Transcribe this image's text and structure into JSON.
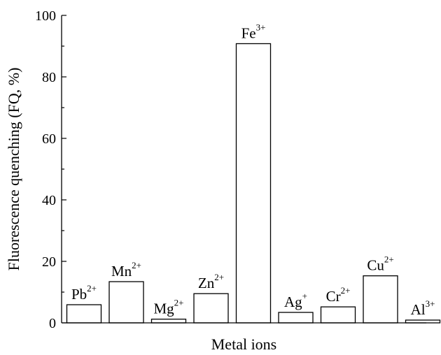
{
  "chart_data": {
    "type": "bar",
    "title": "",
    "xlabel": "Metal ions",
    "ylabel": "Fluorescence quenching (FQ, %)",
    "ylim": [
      0,
      100
    ],
    "yticks": [
      0,
      20,
      40,
      60,
      80,
      100
    ],
    "grid": false,
    "categories": [
      {
        "base": "Pb",
        "charge": "2+"
      },
      {
        "base": "Mn",
        "charge": "2+"
      },
      {
        "base": "Mg",
        "charge": "2+"
      },
      {
        "base": "Zn",
        "charge": "2+"
      },
      {
        "base": "Fe",
        "charge": "3+"
      },
      {
        "base": "Ag",
        "charge": "+"
      },
      {
        "base": "Cr",
        "charge": "2+"
      },
      {
        "base": "Cu",
        "charge": "2+"
      },
      {
        "base": "Al",
        "charge": "3+"
      }
    ],
    "values": [
      5.9,
      13.4,
      1.2,
      9.5,
      90.8,
      3.4,
      5.2,
      15.3,
      0.9
    ]
  }
}
